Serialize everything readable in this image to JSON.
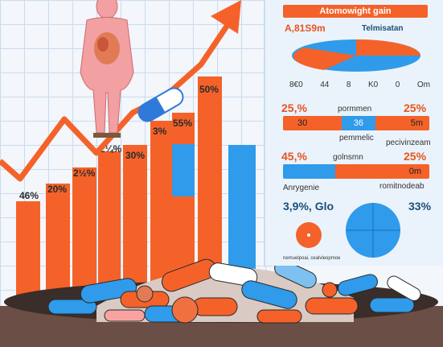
{
  "colors": {
    "orange": "#f4622a",
    "blue": "#2f9bea",
    "dark": "#3a3a3a"
  },
  "bars": [
    {
      "label": "46%"
    },
    {
      "label": "20%"
    },
    {
      "label": "2½%"
    },
    {
      "label": "2¼%"
    },
    {
      "label": "30%"
    },
    {
      "label": "3%"
    },
    {
      "label": "55%"
    },
    {
      "label": "50%"
    }
  ],
  "panel": {
    "title": "Atomowight gain",
    "pie_value": "A,81S9m",
    "pie_name": "Telmisatan",
    "pie_ticks": [
      "8€0",
      "44",
      "8",
      "K0",
      "0",
      "Om"
    ],
    "row1": {
      "left": "25,%",
      "mid": "pormmen",
      "right": "25%"
    },
    "bar1": {
      "left": "30",
      "mid": "36",
      "right": "5m"
    },
    "row2": {
      "mid": "pemmelic",
      "right": "pecivinzeam"
    },
    "row3": {
      "left": "45,%",
      "mid": "golnsmn",
      "right": "25%"
    },
    "bar3": {
      "right": "0m"
    },
    "row4": {
      "left": "Anrygenie",
      "right": "romitnodeab"
    },
    "stat_left": "3,9%, Glo",
    "stat_right": "33%",
    "footnote": "nemuelpoai, cealvleopmoe"
  }
}
